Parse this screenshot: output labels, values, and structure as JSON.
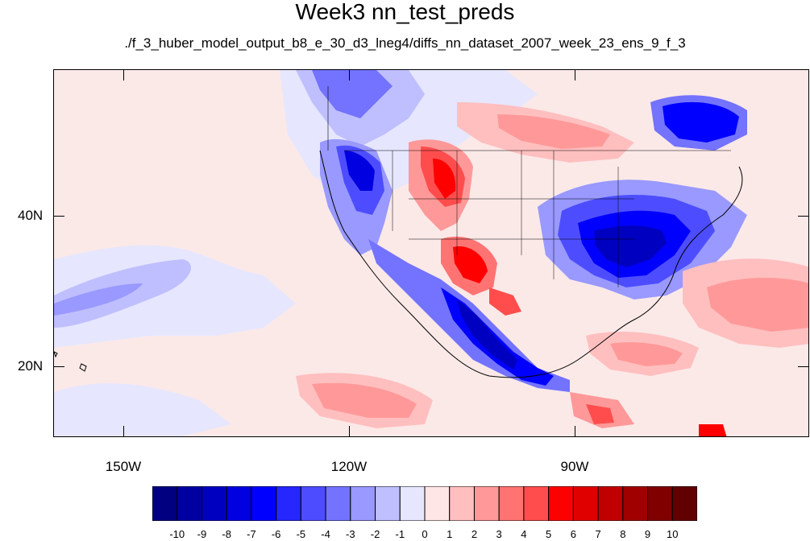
{
  "title": "Week3 nn_test_preds",
  "subtitle": "./f_3_huber_model_output_b8_e_30_d3_lneg4/diffs_nn_dataset_2007_week_23_ens_9_f_3",
  "map": {
    "lat_labels": [
      "40N",
      "20N"
    ],
    "lon_labels": [
      "150W",
      "120W",
      "90W"
    ]
  },
  "colorbar": {
    "labels": [
      "-10",
      "-9",
      "-8",
      "-7",
      "-6",
      "-5",
      "-4",
      "-3",
      "-2",
      "-1",
      "0",
      "1",
      "2",
      "3",
      "4",
      "5",
      "6",
      "7",
      "8",
      "9",
      "10"
    ],
    "colors": [
      "#000080",
      "#0000a0",
      "#0000c0",
      "#0000e0",
      "#0000ff",
      "#2626ff",
      "#4d4dff",
      "#7373ff",
      "#9999ff",
      "#bfbfff",
      "#e6e6ff",
      "#ffe6e6",
      "#ffbfbf",
      "#ff9999",
      "#ff7373",
      "#ff4d4d",
      "#ff0000",
      "#e00000",
      "#c00000",
      "#a00000",
      "#800000",
      "#600000"
    ]
  }
}
